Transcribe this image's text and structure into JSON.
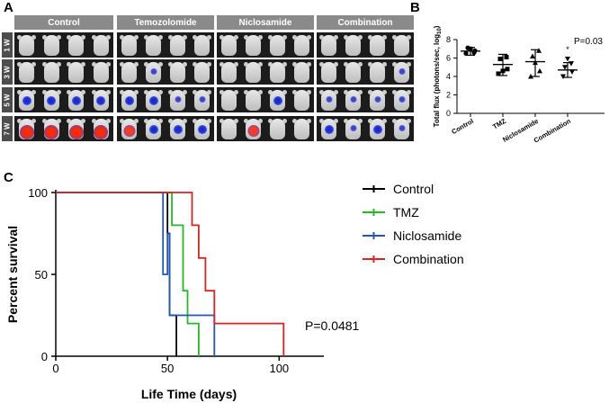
{
  "panel_labels": {
    "a": "A",
    "b": "B",
    "c": "C"
  },
  "panel_a": {
    "groups": [
      "Control",
      "Temozolomide",
      "Niclosamide",
      "Combination"
    ],
    "rows": [
      "1 W",
      "3 W",
      "5 W",
      "7 W"
    ],
    "signal_intensity": [
      [
        [
          0,
          0,
          0,
          0
        ],
        [
          0,
          0,
          0,
          0
        ],
        [
          0,
          0,
          0,
          0
        ],
        [
          0,
          0,
          0,
          0
        ]
      ],
      [
        [
          0,
          0,
          0,
          0
        ],
        [
          0,
          1,
          0,
          0
        ],
        [
          0,
          0,
          0,
          0
        ],
        [
          0,
          0,
          0,
          1
        ]
      ],
      [
        [
          2,
          2,
          2,
          2
        ],
        [
          2,
          2,
          1,
          1
        ],
        [
          0,
          0,
          2,
          0
        ],
        [
          1,
          1,
          1,
          1
        ]
      ],
      [
        [
          4,
          4,
          4,
          4
        ],
        [
          3,
          2,
          2,
          2
        ],
        [
          0,
          3,
          0,
          0
        ],
        [
          2,
          1,
          2,
          1
        ]
      ]
    ],
    "colors": {
      "background": "#1c1c1c",
      "header": "#8a8a8a",
      "row_tag": "#4d4d4d"
    }
  },
  "chart_data": [
    {
      "type": "scatter",
      "title": "",
      "categories": [
        "Control",
        "TMZ",
        "Niclosamide",
        "Combination"
      ],
      "ylabel": "Total flux (photons/sec, log10)",
      "ylabel_main": "Total flux (photons/sec, log",
      "ylabel_sub": "10",
      "ylabel_close": ")",
      "ylim": [
        0,
        8
      ],
      "yticks": [
        "0",
        "2",
        "4",
        "6",
        "8"
      ],
      "points": [
        [
          6.5,
          6.8,
          7.1,
          6.6,
          7.0
        ],
        [
          4.3,
          4.8,
          5.9,
          6.1,
          4.6
        ],
        [
          4.0,
          4.6,
          6.2,
          6.8,
          5.5
        ],
        [
          4.0,
          4.5,
          5.0,
          5.4,
          5.9
        ]
      ],
      "means": [
        6.75,
        5.3,
        5.6,
        4.7
      ],
      "sd_low": [
        6.3,
        4.1,
        4.0,
        3.9
      ],
      "sd_high": [
        7.15,
        6.4,
        6.9,
        5.5
      ],
      "annotation": "P=0.03",
      "star": "*"
    },
    {
      "type": "line",
      "title": "",
      "xlabel": "Life Time (days)",
      "ylabel": "Percent survival",
      "xlim": [
        0,
        120
      ],
      "ylim": [
        0,
        100
      ],
      "xticks": [
        "0",
        "50",
        "100"
      ],
      "yticks": [
        "0",
        "50",
        "100"
      ],
      "series": [
        {
          "name": "Control",
          "color": "#000000",
          "x": [
            0,
            50,
            50,
            51,
            51,
            54,
            54
          ],
          "y": [
            100,
            100,
            75,
            75,
            25,
            25,
            0
          ]
        },
        {
          "name": "TMZ",
          "color": "#22bb22",
          "x": [
            0,
            52,
            52,
            57,
            57,
            59,
            59,
            64,
            64
          ],
          "y": [
            100,
            100,
            80,
            80,
            40,
            40,
            20,
            20,
            0
          ]
        },
        {
          "name": "Niclosamide",
          "color": "#2255bb",
          "x": [
            0,
            48,
            48,
            50,
            50,
            51,
            51,
            71,
            71
          ],
          "y": [
            100,
            100,
            50,
            50,
            75,
            75,
            25,
            25,
            0
          ]
        },
        {
          "name": "Combination",
          "color": "#dd2222",
          "x": [
            0,
            56,
            56,
            61,
            61,
            64,
            64,
            67,
            67,
            71,
            71,
            102,
            102
          ],
          "y": [
            100,
            100,
            100,
            100,
            80,
            80,
            60,
            60,
            40,
            40,
            20,
            20,
            0
          ]
        }
      ],
      "annotation": "P=0.0481"
    }
  ]
}
